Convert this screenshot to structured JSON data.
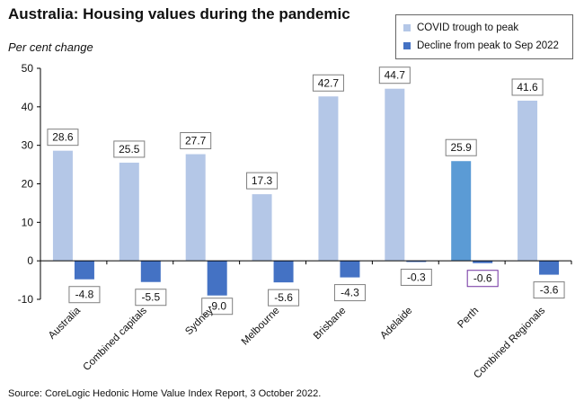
{
  "chart_data": {
    "type": "bar",
    "title": "Australia: Housing values during the pandemic",
    "ylabel": "Per cent change",
    "ylim": [
      -10,
      50
    ],
    "yticks": [
      "-10",
      "0",
      "10",
      "20",
      "30",
      "40",
      "50"
    ],
    "categories": [
      "Australia",
      "Combined capitals",
      "Sydney",
      "Melbourne",
      "Brisbane",
      "Adelaide",
      "Perth",
      "Combined Regionals"
    ],
    "series": [
      {
        "name": "COVID trough to peak",
        "color": "#b4c7e7",
        "values": [
          28.6,
          25.5,
          27.7,
          17.3,
          42.7,
          44.7,
          25.9,
          41.6
        ],
        "labels": [
          "28.6",
          "25.5",
          "27.7",
          "17.3",
          "42.7",
          "44.7",
          "25.9",
          "41.6"
        ]
      },
      {
        "name": "Decline from peak to Sep 2022",
        "color": "#4472c4",
        "values": [
          -4.8,
          -5.5,
          -9.0,
          -5.6,
          -4.3,
          -0.3,
          -0.6,
          -3.6
        ],
        "labels": [
          "-4.8",
          "-5.5",
          "-9.0",
          "-5.6",
          "-4.3",
          "-0.3",
          "-0.6",
          "-3.6"
        ]
      }
    ],
    "highlight": {
      "category_index": 6,
      "series_index": 0,
      "color": "#5b9bd5",
      "label_border": "#7030a0"
    },
    "legend_position": "top-right",
    "source": "Source: CoreLogic Hedonic Home Value Index Report, 3 October 2022."
  }
}
